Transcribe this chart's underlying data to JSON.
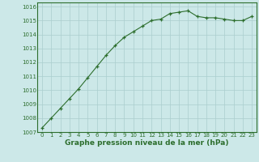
{
  "x": [
    0,
    1,
    2,
    3,
    4,
    5,
    6,
    7,
    8,
    9,
    10,
    11,
    12,
    13,
    14,
    15,
    16,
    17,
    18,
    19,
    20,
    21,
    22,
    23
  ],
  "y": [
    1007.3,
    1008.0,
    1008.7,
    1009.4,
    1010.1,
    1010.9,
    1011.7,
    1012.5,
    1013.2,
    1013.8,
    1014.2,
    1014.6,
    1015.0,
    1015.1,
    1015.5,
    1015.6,
    1015.7,
    1015.3,
    1015.2,
    1015.2,
    1015.1,
    1015.0,
    1015.0,
    1015.3
  ],
  "ylim": [
    1007,
    1016
  ],
  "xlim": [
    -0.5,
    23.5
  ],
  "yticks": [
    1007,
    1008,
    1009,
    1010,
    1011,
    1012,
    1013,
    1014,
    1015,
    1016
  ],
  "xticks": [
    0,
    1,
    2,
    3,
    4,
    5,
    6,
    7,
    8,
    9,
    10,
    11,
    12,
    13,
    14,
    15,
    16,
    17,
    18,
    19,
    20,
    21,
    22,
    23
  ],
  "xlabel": "Graphe pression niveau de la mer (hPa)",
  "line_color": "#2d6e2d",
  "marker": "+",
  "marker_color": "#2d6e2d",
  "bg_color": "#cce8e8",
  "grid_color": "#aacece",
  "tick_color": "#2d6e2d",
  "label_color": "#2d6e2d",
  "border_color": "#2d6e2d"
}
